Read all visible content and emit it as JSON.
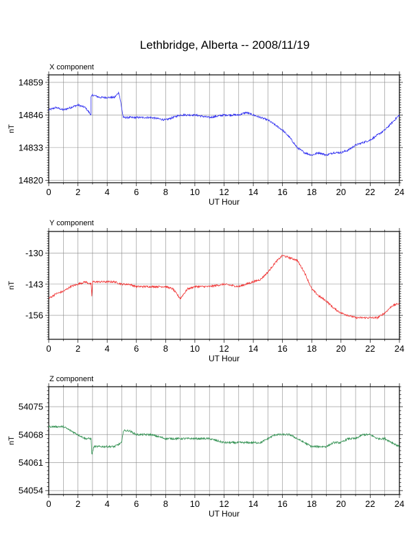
{
  "title": "Lethbridge, Alberta -- 2008/11/19",
  "chart_data": [
    {
      "type": "line",
      "panel_label": "X component",
      "xlabel": "UT Hour",
      "ylabel": "nT",
      "xlim": [
        0,
        24
      ],
      "ylim": [
        14819,
        14862
      ],
      "xticks": [
        0,
        2,
        4,
        6,
        8,
        10,
        12,
        14,
        16,
        18,
        20,
        22,
        24
      ],
      "yticks": [
        14820,
        14833,
        14846,
        14859
      ],
      "grid": true,
      "color": "#2a2af0",
      "series": [
        {
          "x": [
            0,
            0.5,
            1,
            1.5,
            2,
            2.5,
            2.9,
            2.9,
            3,
            3.5,
            4,
            4.5,
            4.8,
            4.9,
            5.1,
            5.5,
            6,
            7,
            8,
            9,
            10,
            11,
            12,
            13,
            13.5,
            14,
            15,
            15.5,
            16,
            16.5,
            17,
            17.5,
            18,
            18.5,
            19,
            19.5,
            20,
            20.5,
            21,
            21.5,
            22,
            22.5,
            23,
            23.5,
            24
          ],
          "y": [
            14848,
            14849,
            14848,
            14849,
            14850,
            14849,
            14846,
            14853,
            14854,
            14853,
            14853,
            14853,
            14855,
            14852,
            14845,
            14845,
            14845,
            14845,
            14844,
            14846,
            14846,
            14845,
            14846,
            14846,
            14847,
            14846,
            14844,
            14842,
            14840,
            14837,
            14833,
            14831,
            14830,
            14831,
            14830,
            14831,
            14831,
            14832,
            14834,
            14835,
            14836,
            14838,
            14840,
            14843,
            14846
          ]
        }
      ]
    },
    {
      "type": "line",
      "panel_label": "Y component",
      "xlabel": "UT Hour",
      "ylabel": "nT",
      "xlim": [
        0,
        24
      ],
      "ylim": [
        -166,
        -121
      ],
      "xticks": [
        0,
        2,
        4,
        6,
        8,
        10,
        12,
        14,
        16,
        18,
        20,
        22,
        24
      ],
      "yticks": [
        -130,
        -143,
        -156
      ],
      "grid": true,
      "color": "#f03030",
      "series": [
        {
          "x": [
            0,
            0.5,
            1,
            1.5,
            2,
            2.5,
            2.9,
            2.95,
            3,
            3.5,
            4,
            4.5,
            5,
            5.5,
            6,
            7,
            8,
            8.5,
            9,
            9.5,
            10,
            11,
            12,
            13,
            14,
            14.5,
            15,
            15.5,
            16,
            16.5,
            17,
            17.5,
            18,
            18.5,
            19,
            19.5,
            20,
            20.5,
            21,
            21.5,
            22,
            22.5,
            23,
            23.5,
            24
          ],
          "y": [
            -149,
            -147,
            -146,
            -144,
            -143,
            -142,
            -143,
            -148,
            -142,
            -142,
            -142,
            -142,
            -143,
            -143,
            -144,
            -144,
            -144,
            -145,
            -149,
            -145,
            -144,
            -144,
            -143,
            -144,
            -142,
            -141,
            -138,
            -134,
            -131,
            -132,
            -133,
            -138,
            -145,
            -148,
            -150,
            -153,
            -155,
            -156,
            -157,
            -157,
            -157,
            -157,
            -155,
            -152,
            -151
          ]
        }
      ]
    },
    {
      "type": "line",
      "panel_label": "Z component",
      "xlabel": "UT Hour",
      "ylabel": "nT",
      "xlim": [
        0,
        24
      ],
      "ylim": [
        54053,
        54080
      ],
      "xticks": [
        0,
        2,
        4,
        6,
        8,
        10,
        12,
        14,
        16,
        18,
        20,
        22,
        24
      ],
      "yticks": [
        54054,
        54061,
        54068,
        54075
      ],
      "grid": true,
      "color": "#2f8f4f",
      "series": [
        {
          "x": [
            0,
            0.5,
            1,
            1.5,
            2,
            2.5,
            2.9,
            2.95,
            3.1,
            3.5,
            4,
            4.5,
            5,
            5.1,
            5.5,
            6,
            7,
            8,
            9,
            10,
            11,
            12,
            13,
            14,
            14.5,
            15,
            15.5,
            16,
            16.5,
            17,
            17.5,
            18,
            18.5,
            19,
            19.5,
            20,
            20.5,
            21,
            21.5,
            22,
            22.5,
            23,
            23.5,
            24
          ],
          "y": [
            54070,
            54070,
            54070,
            54069,
            54068,
            54067,
            54067,
            54063,
            54065,
            54065,
            54065,
            54065,
            54066,
            54069,
            54069,
            54068,
            54068,
            54067,
            54067,
            54067,
            54067,
            54066,
            54066,
            54066,
            54066,
            54067,
            54068,
            54068,
            54068,
            54067,
            54066,
            54065,
            54065,
            54065,
            54066,
            54066,
            54067,
            54067,
            54068,
            54068,
            54067,
            54067,
            54066,
            54065
          ]
        }
      ]
    }
  ]
}
